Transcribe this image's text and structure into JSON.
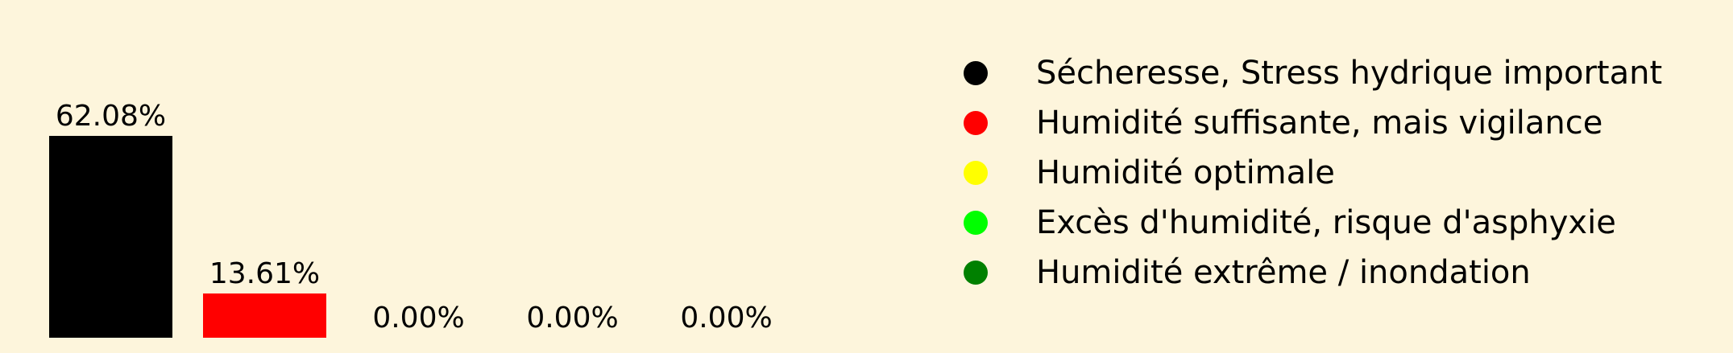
{
  "chart_data": {
    "type": "bar",
    "categories": [
      "Sécheresse, Stress hydrique important",
      "Humidité suffisante, mais vigilance",
      "Humidité optimale",
      "Excès d'humidité, risque d'asphyxie",
      "Humidité extrême / inondation"
    ],
    "values": [
      62.08,
      13.61,
      0.0,
      0.0,
      0.0
    ],
    "value_labels": [
      "62.08%",
      "13.61%",
      "0.00%",
      "0.00%",
      "0.00%"
    ],
    "colors": [
      "#000000",
      "#ff0000",
      "#ffff00",
      "#00ff00",
      "#008000"
    ],
    "ylim": [
      0,
      62.08
    ],
    "legend": {
      "position": "right",
      "entries": [
        "Sécheresse, Stress hydrique important",
        "Humidité suffisante, mais vigilance",
        "Humidité optimale",
        "Excès d'humidité, risque d'asphyxie",
        "Humidité extrême / inondation"
      ]
    },
    "background": "#fdf5dc",
    "grid": false,
    "axes_visible": false
  }
}
